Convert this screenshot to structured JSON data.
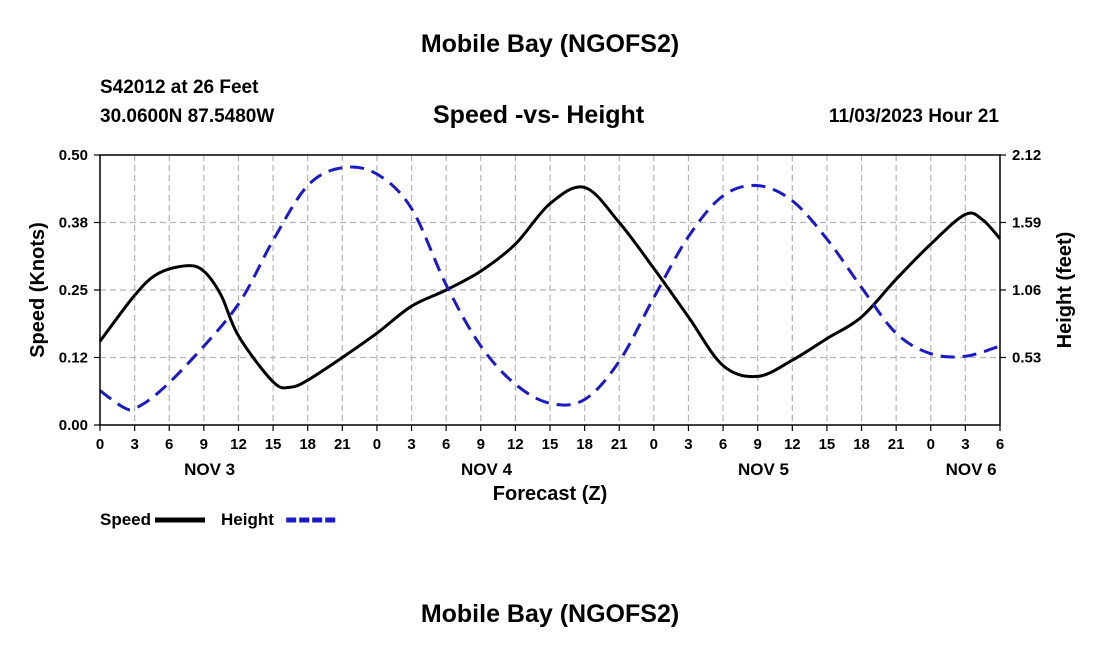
{
  "header": {
    "title": "Mobile Bay (NGOFS2)",
    "station": "S42012 at 26 Feet",
    "coordinates": "30.0600N  87.5480W",
    "subtitle": "Speed -vs- Height",
    "datetime": "11/03/2023 Hour 21"
  },
  "footer": {
    "title": "Mobile Bay (NGOFS2)"
  },
  "chart_data": {
    "type": "line",
    "title": "Speed -vs- Height",
    "xlabel": "Forecast (Z)",
    "ylabel": "Speed (Knots)",
    "y2label": "Height (feet)",
    "x_range": [
      0,
      78
    ],
    "xlim_hours": [
      0,
      78
    ],
    "x_ticks": [
      0,
      3,
      6,
      9,
      12,
      15,
      18,
      21,
      24,
      27,
      30,
      33,
      36,
      39,
      42,
      45,
      48,
      51,
      54,
      57,
      60,
      63,
      66,
      69,
      72,
      75,
      78
    ],
    "x_tick_labels": [
      "0",
      "3",
      "6",
      "9",
      "12",
      "15",
      "18",
      "21",
      "0",
      "3",
      "6",
      "9",
      "12",
      "15",
      "18",
      "21",
      "0",
      "3",
      "6",
      "9",
      "12",
      "15",
      "18",
      "21",
      "0",
      "3",
      "6"
    ],
    "date_labels": [
      {
        "text": "NOV 3",
        "hour": 9.5
      },
      {
        "text": "NOV 4",
        "hour": 33.5
      },
      {
        "text": "NOV 5",
        "hour": 57.5
      },
      {
        "text": "NOV 6",
        "hour": 75.5
      }
    ],
    "ylim": [
      0,
      0.5
    ],
    "y_ticks": [
      0.0,
      0.125,
      0.25,
      0.375,
      0.5
    ],
    "y_tick_labels": [
      "0.00",
      "0.12",
      "0.25",
      "0.38",
      "0.50"
    ],
    "y2lim": [
      0,
      2.12
    ],
    "y2_ticks": [
      0.53,
      1.06,
      1.59,
      2.12
    ],
    "y2_tick_labels": [
      "0.53",
      "1.06",
      "1.59",
      "2.12"
    ],
    "grid": true,
    "series": [
      {
        "name": "Speed",
        "axis": "left",
        "color": "#000000",
        "dash": "solid",
        "x": [
          0,
          3,
          5,
          7.5,
          9,
          10.5,
          12,
          15,
          16.5,
          18,
          21,
          24,
          27,
          30,
          33,
          36,
          39,
          42,
          45,
          48,
          51,
          54,
          57,
          60,
          63,
          66,
          69,
          72,
          75,
          76.5,
          78
        ],
        "values": [
          0.155,
          0.24,
          0.28,
          0.295,
          0.285,
          0.24,
          0.165,
          0.08,
          0.07,
          0.083,
          0.125,
          0.17,
          0.22,
          0.25,
          0.285,
          0.335,
          0.41,
          0.44,
          0.375,
          0.29,
          0.2,
          0.11,
          0.09,
          0.12,
          0.16,
          0.2,
          0.27,
          0.335,
          0.39,
          0.38,
          0.345
        ]
      },
      {
        "name": "Height",
        "axis": "right",
        "color": "#1a1ac8",
        "dash": "dashed",
        "x": [
          0,
          2,
          3,
          5,
          8,
          12,
          15,
          18,
          21,
          24,
          27,
          30,
          33,
          36,
          39,
          42,
          45,
          48,
          51,
          54,
          57,
          60,
          63,
          66,
          69,
          72,
          75,
          78
        ],
        "values": [
          0.27,
          0.14,
          0.13,
          0.25,
          0.52,
          0.95,
          1.45,
          1.88,
          2.02,
          1.97,
          1.7,
          1.1,
          0.62,
          0.32,
          0.17,
          0.2,
          0.5,
          1.0,
          1.48,
          1.8,
          1.88,
          1.76,
          1.46,
          1.08,
          0.72,
          0.56,
          0.54,
          0.62
        ]
      }
    ],
    "legend": [
      {
        "label": "Speed",
        "color": "#000000",
        "dash": "solid"
      },
      {
        "label": "Height",
        "color": "#1a1ac8",
        "dash": "dashed"
      }
    ],
    "legend_position": "bottom-left"
  }
}
